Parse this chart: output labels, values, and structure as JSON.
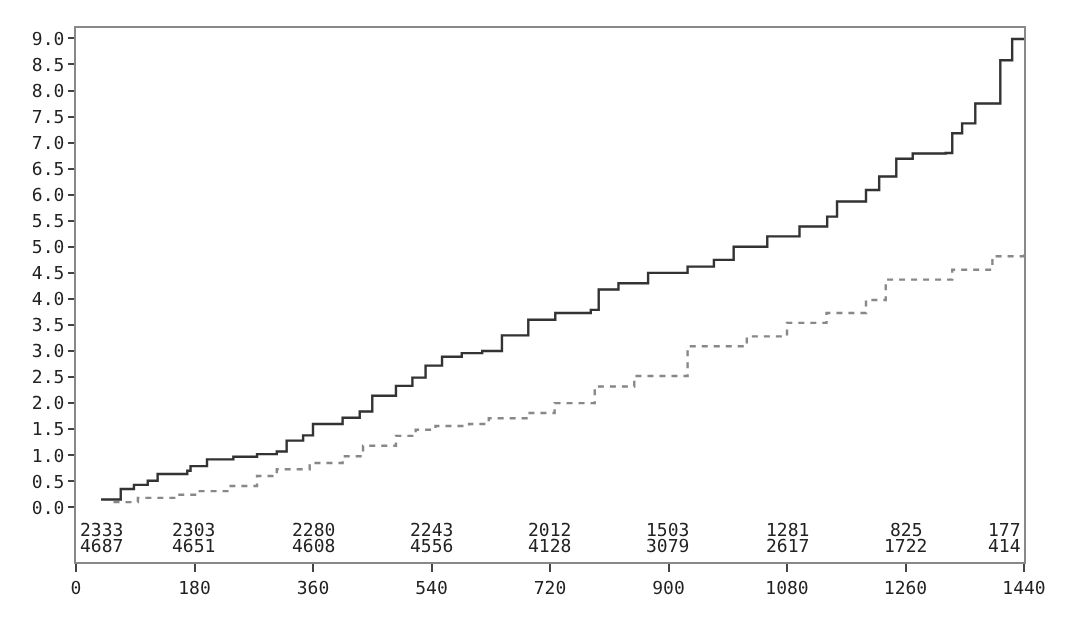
{
  "chart_data": {
    "type": "step",
    "xlim": [
      0,
      1440
    ],
    "ylim": [
      -1.05,
      9.2
    ],
    "xticks": [
      0,
      180,
      360,
      540,
      720,
      900,
      1080,
      1260,
      1440
    ],
    "yticks": [
      {
        "value": 0,
        "label": "0.0"
      },
      {
        "value": 0.5,
        "label": "0.5"
      },
      {
        "value": 1,
        "label": "1.0"
      },
      {
        "value": 1.5,
        "label": "1.5"
      },
      {
        "value": 2,
        "label": "2.0"
      },
      {
        "value": 2.5,
        "label": "2.5"
      },
      {
        "value": 3,
        "label": "3.0"
      },
      {
        "value": 3.5,
        "label": "3.5"
      },
      {
        "value": 4,
        "label": "4.0"
      },
      {
        "value": 4.5,
        "label": "4.5"
      },
      {
        "value": 5,
        "label": "5.0"
      },
      {
        "value": 5.5,
        "label": "5.5"
      },
      {
        "value": 6,
        "label": "6.0"
      },
      {
        "value": 6.5,
        "label": "6.5"
      },
      {
        "value": 7,
        "label": "7.0"
      },
      {
        "value": 7.5,
        "label": "7.5"
      },
      {
        "value": 8,
        "label": "8.0"
      },
      {
        "value": 8.5,
        "label": "8.5"
      },
      {
        "value": 9,
        "label": "9.0"
      }
    ],
    "series": [
      {
        "color": "#333333",
        "line_style": "solid",
        "x": [
          38,
          68,
          88,
          109,
          124,
          169,
          174,
          199,
          239,
          275,
          305,
          320,
          345,
          360,
          405,
          431,
          450,
          486,
          511,
          531,
          556,
          586,
          617,
          647,
          687,
          728,
          782,
          794,
          824,
          869,
          929,
          969,
          999,
          1050,
          1099,
          1141,
          1156,
          1200,
          1220,
          1246,
          1271,
          1321,
          1331,
          1346,
          1366,
          1404,
          1422,
          1440
        ],
        "values": [
          0.15,
          0.35,
          0.43,
          0.51,
          0.64,
          0.7,
          0.79,
          0.92,
          0.97,
          1.02,
          1.07,
          1.28,
          1.38,
          1.6,
          1.72,
          1.84,
          2.14,
          2.33,
          2.49,
          2.72,
          2.89,
          2.96,
          3.0,
          3.3,
          3.6,
          3.73,
          3.79,
          4.18,
          4.3,
          4.5,
          4.62,
          4.75,
          5.0,
          5.2,
          5.39,
          5.58,
          5.87,
          6.09,
          6.35,
          6.69,
          6.79,
          6.8,
          7.18,
          7.37,
          7.75,
          8.58,
          8.99,
          8.99
        ]
      },
      {
        "color": "#888888",
        "line_style": "dotted",
        "x": [
          57,
          94,
          154,
          184,
          235,
          275,
          305,
          355,
          405,
          436,
          486,
          516,
          546,
          597,
          627,
          687,
          727,
          788,
          848,
          929,
          1019,
          1080,
          1140,
          1200,
          1230,
          1331,
          1392,
          1440
        ],
        "values": [
          0.1,
          0.18,
          0.24,
          0.31,
          0.41,
          0.6,
          0.73,
          0.85,
          0.98,
          1.18,
          1.37,
          1.49,
          1.56,
          1.6,
          1.71,
          1.81,
          2.0,
          2.32,
          2.52,
          3.09,
          3.28,
          3.54,
          3.73,
          3.98,
          4.37,
          4.56,
          4.82,
          4.94
        ]
      }
    ],
    "annotations": [
      "2333",
      "2303",
      "2280",
      "2243",
      "2012",
      "1503",
      "1281",
      "825",
      "177",
      "4687",
      "4651",
      "4608",
      "4556",
      "4128",
      "3079",
      "2617",
      "1722",
      "414"
    ]
  }
}
